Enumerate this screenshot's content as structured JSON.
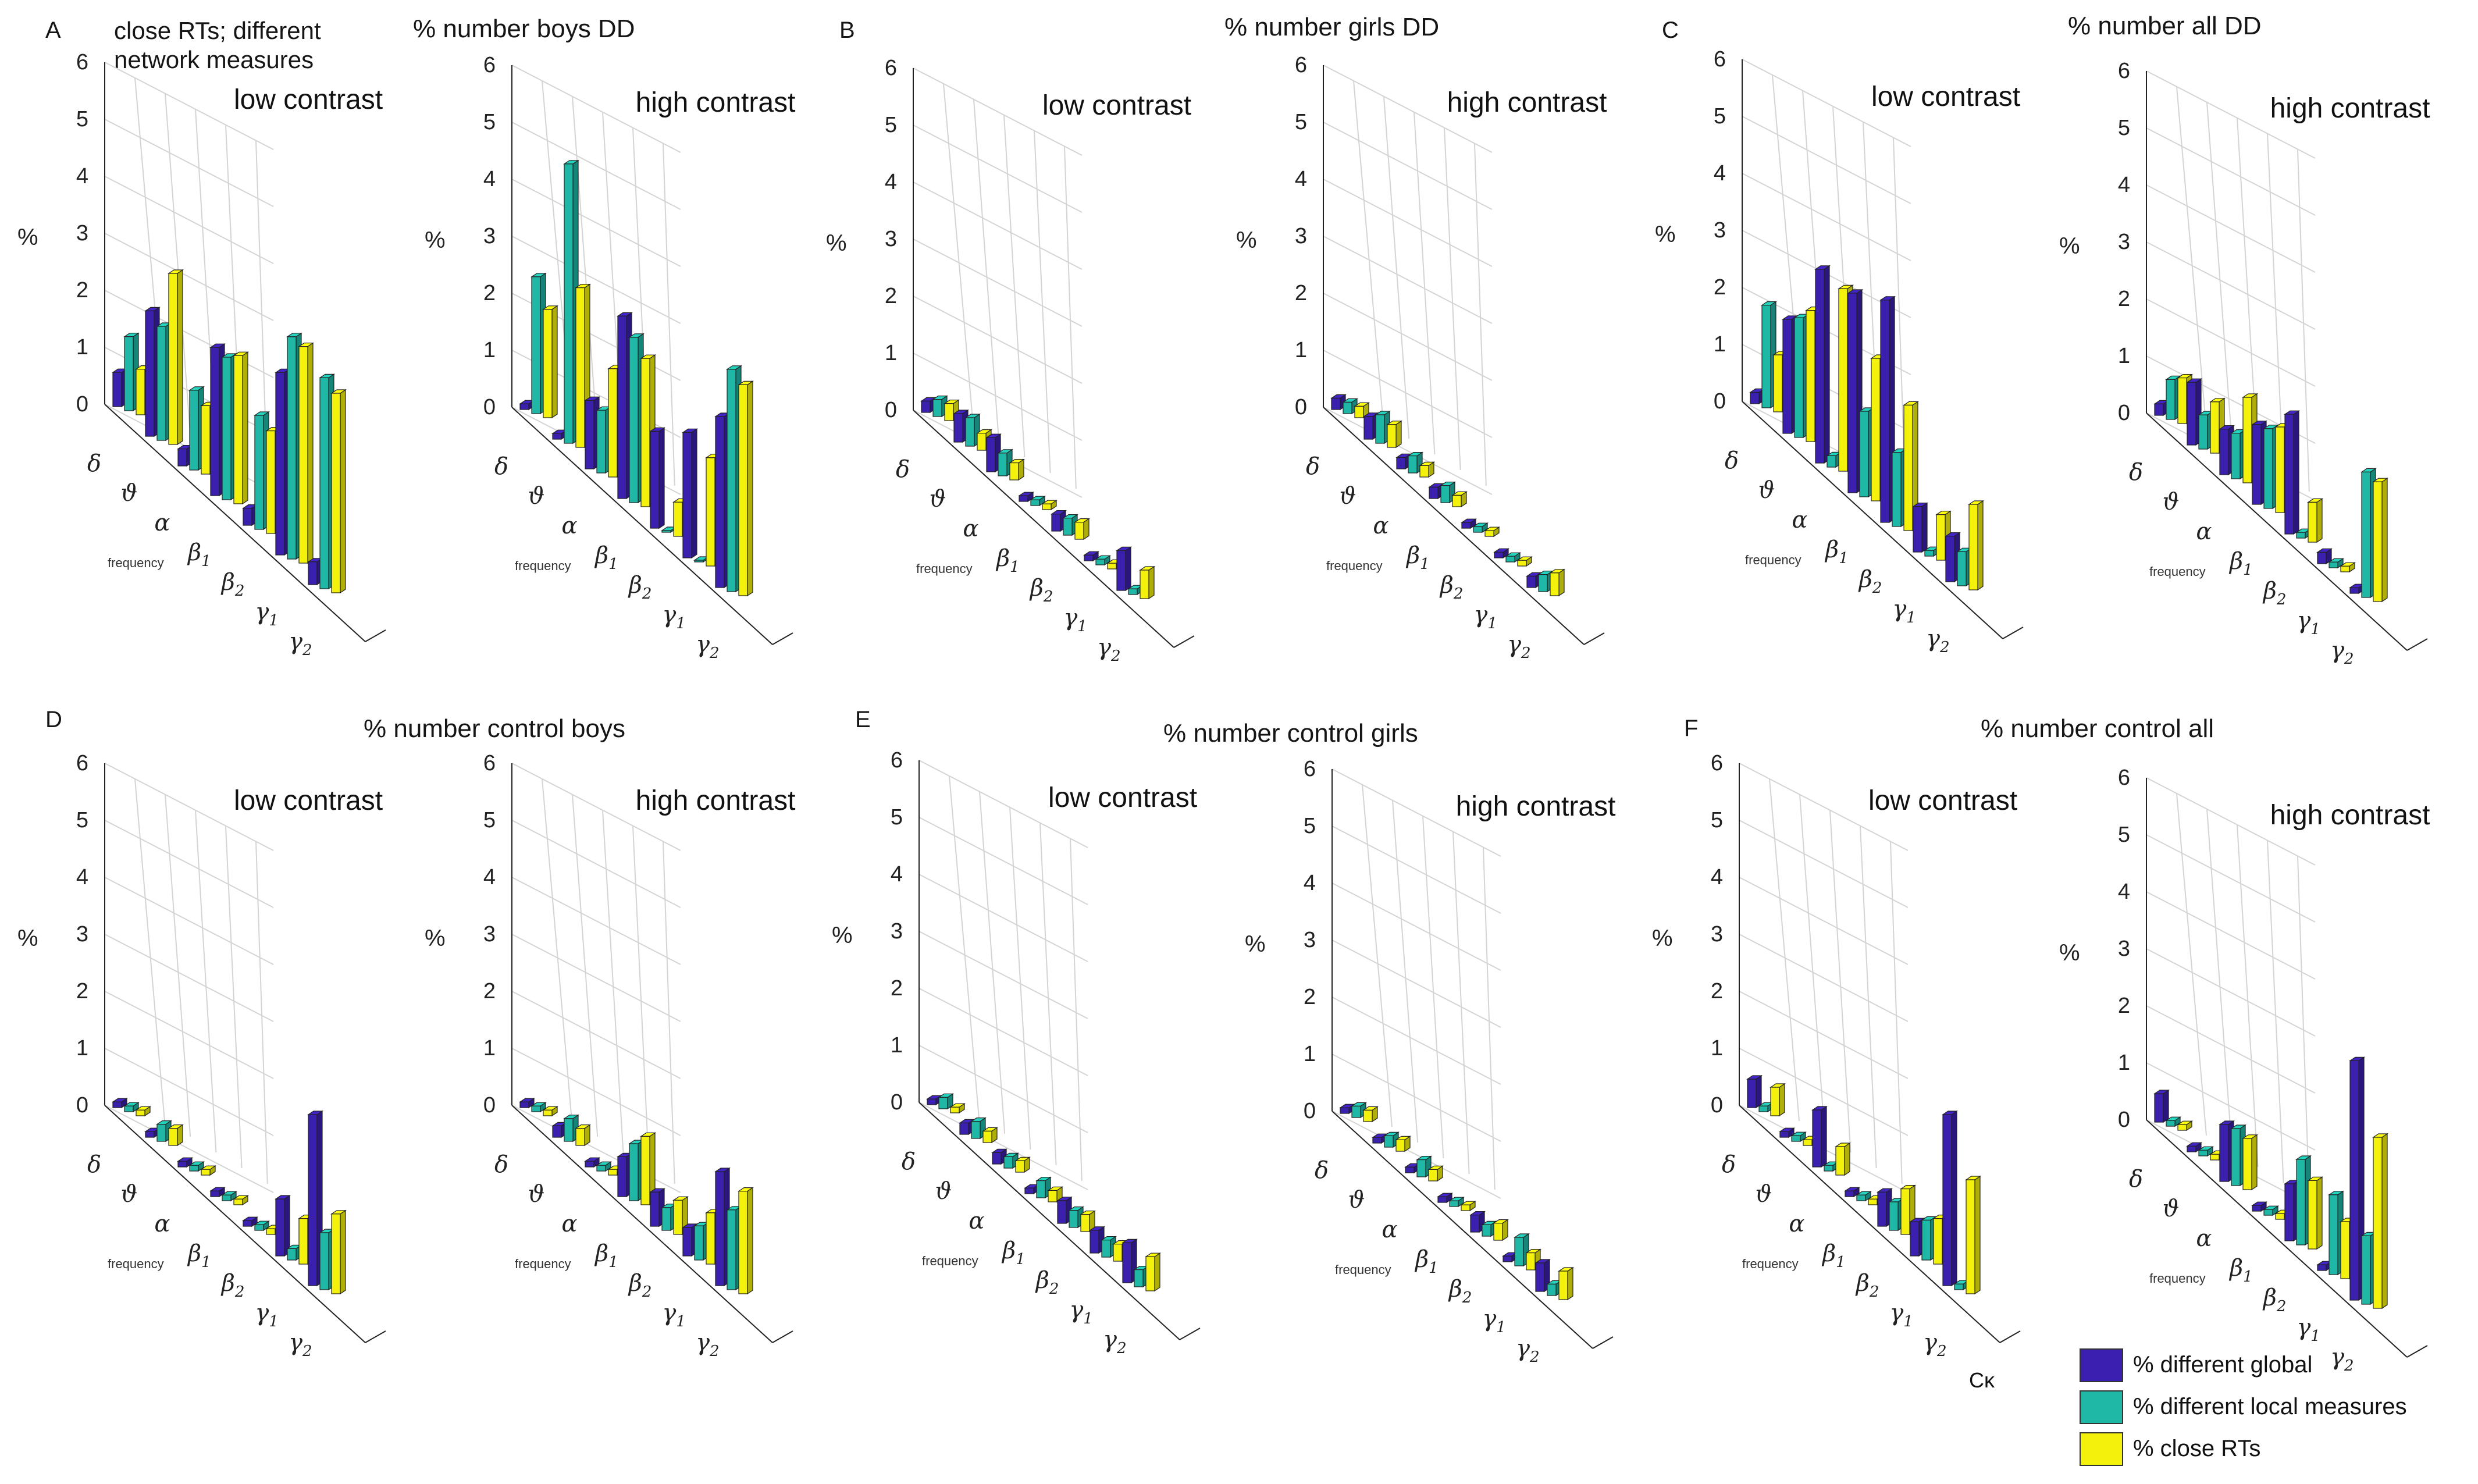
{
  "header_note": [
    "close RTs; different",
    "network measures"
  ],
  "stray_label": "Cκ",
  "colors": {
    "global": "#3B1FAE",
    "local": "#1FB8A6",
    "close": "#F4F20C",
    "grid": "#d4d4d4",
    "axis": "#222222"
  },
  "legend": [
    {
      "label": "% different  global",
      "color": "#3B1FAE"
    },
    {
      "label": "% different  local measures",
      "color": "#1FB8A6"
    },
    {
      "label": "% close RTs",
      "color": "#F4F20C"
    }
  ],
  "groups": [
    {
      "letter": "A",
      "title": "% number boys DD"
    },
    {
      "letter": "B",
      "title": "% number girls DD"
    },
    {
      "letter": "C",
      "title": "% number all DD"
    },
    {
      "letter": "D",
      "title": "% number control boys"
    },
    {
      "letter": "E",
      "title": "% number control girls"
    },
    {
      "letter": "F",
      "title": "% number control all"
    }
  ],
  "chart_data": [
    {
      "type": "bar3d",
      "group": "A",
      "title": "low contrast",
      "ylabel": "%",
      "xlabel": "frequency",
      "ylim": [
        0,
        6
      ],
      "yticks": [
        "0",
        "1",
        "2",
        "3",
        "4",
        "5",
        "6"
      ],
      "categories": [
        "δ",
        "ϑ",
        "α",
        "β1",
        "β2",
        "γ1",
        "γ2"
      ],
      "series": [
        {
          "name": "% different  global",
          "values": [
            0.6,
            2.2,
            0.3,
            2.6,
            0.3,
            3.2,
            0.4
          ]
        },
        {
          "name": "% different  local measures",
          "values": [
            1.3,
            2.0,
            1.4,
            2.5,
            2.0,
            3.9,
            3.7
          ]
        },
        {
          "name": "% close RTs",
          "values": [
            0.8,
            3.0,
            1.2,
            2.6,
            1.8,
            3.8,
            3.5
          ]
        }
      ]
    },
    {
      "type": "bar3d",
      "group": "A",
      "title": "high contrast",
      "ylabel": "%",
      "xlabel": "frequency",
      "ylim": [
        0,
        6
      ],
      "yticks": [
        "0",
        "1",
        "2",
        "3",
        "4",
        "5",
        "6"
      ],
      "categories": [
        "δ",
        "ϑ",
        "α",
        "β1",
        "β2",
        "γ1",
        "γ2"
      ],
      "series": [
        {
          "name": "% different  global",
          "values": [
            0.1,
            0.1,
            1.2,
            3.2,
            1.7,
            2.2,
            3.0
          ]
        },
        {
          "name": "% different  local measures",
          "values": [
            2.4,
            4.9,
            1.1,
            2.9,
            0.0,
            0.0,
            3.9
          ]
        },
        {
          "name": "% close RTs",
          "values": [
            1.9,
            2.8,
            1.9,
            2.6,
            0.6,
            1.9,
            3.7
          ]
        }
      ]
    },
    {
      "type": "bar3d",
      "group": "B",
      "title": "low contrast",
      "ylabel": "%",
      "xlabel": "frequency",
      "ylim": [
        0,
        6
      ],
      "yticks": [
        "0",
        "1",
        "2",
        "3",
        "4",
        "5",
        "6"
      ],
      "categories": [
        "δ",
        "ϑ",
        "α",
        "β1",
        "β2",
        "γ1",
        "γ2"
      ],
      "series": [
        {
          "name": "% different  global",
          "values": [
            0.2,
            0.5,
            0.6,
            0.1,
            0.3,
            0.1,
            0.7
          ]
        },
        {
          "name": "% different  local measures",
          "values": [
            0.3,
            0.5,
            0.4,
            0.1,
            0.3,
            0.1,
            0.1
          ]
        },
        {
          "name": "% close RTs",
          "values": [
            0.3,
            0.3,
            0.3,
            0.1,
            0.3,
            0.1,
            0.5
          ]
        }
      ]
    },
    {
      "type": "bar3d",
      "group": "B",
      "title": "high contrast",
      "ylabel": "%",
      "xlabel": "frequency",
      "ylim": [
        0,
        6
      ],
      "yticks": [
        "0",
        "1",
        "2",
        "3",
        "4",
        "5",
        "6"
      ],
      "categories": [
        "δ",
        "ϑ",
        "α",
        "β1",
        "β2",
        "γ1",
        "γ2"
      ],
      "series": [
        {
          "name": "% different  global",
          "values": [
            0.2,
            0.4,
            0.2,
            0.2,
            0.1,
            0.1,
            0.2
          ]
        },
        {
          "name": "% different  local measures",
          "values": [
            0.2,
            0.5,
            0.3,
            0.3,
            0.1,
            0.1,
            0.3
          ]
        },
        {
          "name": "% close RTs",
          "values": [
            0.2,
            0.4,
            0.2,
            0.2,
            0.1,
            0.1,
            0.4
          ]
        }
      ]
    },
    {
      "type": "bar3d",
      "group": "C",
      "title": "low contrast",
      "ylabel": "%",
      "xlabel": "frequency",
      "ylim": [
        0,
        6
      ],
      "yticks": [
        "0",
        "1",
        "2",
        "3",
        "4",
        "5",
        "6"
      ],
      "categories": [
        "δ",
        "ϑ",
        "α",
        "β1",
        "β2",
        "γ1",
        "γ2"
      ],
      "series": [
        {
          "name": "% different  global",
          "values": [
            0.2,
            2.0,
            3.4,
            3.5,
            3.9,
            0.8,
            0.8
          ]
        },
        {
          "name": "% different  local measures",
          "values": [
            1.8,
            2.1,
            0.2,
            1.5,
            1.3,
            0.1,
            0.6
          ]
        },
        {
          "name": "% close RTs",
          "values": [
            1.0,
            2.3,
            3.2,
            2.5,
            2.2,
            0.8,
            1.5
          ]
        }
      ]
    },
    {
      "type": "bar3d",
      "group": "C",
      "title": "high contrast",
      "ylabel": "%",
      "xlabel": "frequency",
      "ylim": [
        0,
        6
      ],
      "yticks": [
        "0",
        "1",
        "2",
        "3",
        "4",
        "5",
        "6"
      ],
      "categories": [
        "δ",
        "ϑ",
        "α",
        "β1",
        "β2",
        "γ1",
        "γ2"
      ],
      "series": [
        {
          "name": "% different  global",
          "values": [
            0.2,
            1.1,
            0.8,
            1.4,
            2.1,
            0.2,
            0.1
          ]
        },
        {
          "name": "% different  local measures",
          "values": [
            0.7,
            0.6,
            0.8,
            1.4,
            0.1,
            0.1,
            2.2
          ]
        },
        {
          "name": "% close RTs",
          "values": [
            0.8,
            0.9,
            1.5,
            1.5,
            0.7,
            0.1,
            2.1
          ]
        }
      ]
    },
    {
      "type": "bar3d",
      "group": "D",
      "title": "low contrast",
      "ylabel": "%",
      "xlabel": "frequency",
      "ylim": [
        0,
        6
      ],
      "yticks": [
        "0",
        "1",
        "2",
        "3",
        "4",
        "5",
        "6"
      ],
      "categories": [
        "δ",
        "ϑ",
        "α",
        "β1",
        "β2",
        "γ1",
        "γ2"
      ],
      "series": [
        {
          "name": "% different  global",
          "values": [
            0.1,
            0.1,
            0.1,
            0.1,
            0.1,
            1.0,
            3.0
          ]
        },
        {
          "name": "% different  local measures",
          "values": [
            0.1,
            0.3,
            0.1,
            0.1,
            0.1,
            0.2,
            1.0
          ]
        },
        {
          "name": "% close RTs",
          "values": [
            0.1,
            0.3,
            0.1,
            0.1,
            0.1,
            0.8,
            1.4
          ]
        }
      ]
    },
    {
      "type": "bar3d",
      "group": "D",
      "title": "high contrast",
      "ylabel": "%",
      "xlabel": "frequency",
      "ylim": [
        0,
        6
      ],
      "yticks": [
        "0",
        "1",
        "2",
        "3",
        "4",
        "5",
        "6"
      ],
      "categories": [
        "δ",
        "ϑ",
        "α",
        "β1",
        "β2",
        "γ1",
        "γ2"
      ],
      "series": [
        {
          "name": "% different  global",
          "values": [
            0.1,
            0.2,
            0.1,
            0.7,
            0.6,
            0.5,
            2.0
          ]
        },
        {
          "name": "% different  local measures",
          "values": [
            0.1,
            0.4,
            0.1,
            1.0,
            0.4,
            0.6,
            1.4
          ]
        },
        {
          "name": "% close RTs",
          "values": [
            0.1,
            0.3,
            0.1,
            1.2,
            0.6,
            0.9,
            1.8
          ]
        }
      ]
    },
    {
      "type": "bar3d",
      "group": "E",
      "title": "low contrast",
      "ylabel": "%",
      "xlabel": "frequency",
      "ylim": [
        0,
        6
      ],
      "yticks": [
        "0",
        "1",
        "2",
        "3",
        "4",
        "5",
        "6"
      ],
      "categories": [
        "δ",
        "ϑ",
        "α",
        "β1",
        "β2",
        "γ1",
        "γ2"
      ],
      "series": [
        {
          "name": "% different  global",
          "values": [
            0.1,
            0.2,
            0.2,
            0.1,
            0.4,
            0.4,
            0.7
          ]
        },
        {
          "name": "% different  local measures",
          "values": [
            0.2,
            0.3,
            0.2,
            0.3,
            0.3,
            0.3,
            0.3
          ]
        },
        {
          "name": "% close RTs",
          "values": [
            0.1,
            0.2,
            0.2,
            0.2,
            0.3,
            0.3,
            0.6
          ]
        }
      ]
    },
    {
      "type": "bar3d",
      "group": "E",
      "title": "high contrast",
      "ylabel": "%",
      "xlabel": "frequency",
      "ylim": [
        0,
        6
      ],
      "yticks": [
        "0",
        "1",
        "2",
        "3",
        "4",
        "5",
        "6"
      ],
      "categories": [
        "δ",
        "ϑ",
        "α",
        "β1",
        "β2",
        "γ1",
        "γ2"
      ],
      "series": [
        {
          "name": "% different  global",
          "values": [
            0.1,
            0.1,
            0.1,
            0.1,
            0.3,
            0.1,
            0.5
          ]
        },
        {
          "name": "% different  local measures",
          "values": [
            0.2,
            0.2,
            0.3,
            0.1,
            0.2,
            0.5,
            0.2
          ]
        },
        {
          "name": "% close RTs",
          "values": [
            0.2,
            0.2,
            0.2,
            0.1,
            0.3,
            0.3,
            0.5
          ]
        }
      ]
    },
    {
      "type": "bar3d",
      "group": "F",
      "title": "low contrast",
      "ylabel": "%",
      "xlabel": "frequency",
      "ylim": [
        0,
        6
      ],
      "yticks": [
        "0",
        "1",
        "2",
        "3",
        "4",
        "5",
        "6"
      ],
      "categories": [
        "δ",
        "ϑ",
        "α",
        "β1",
        "β2",
        "γ1",
        "γ2"
      ],
      "series": [
        {
          "name": "% different  global",
          "values": [
            0.5,
            0.1,
            1.0,
            0.1,
            0.6,
            0.6,
            3.0
          ]
        },
        {
          "name": "% different  local measures",
          "values": [
            0.1,
            0.1,
            0.1,
            0.1,
            0.5,
            0.7,
            0.1
          ]
        },
        {
          "name": "% close RTs",
          "values": [
            0.5,
            0.1,
            0.5,
            0.1,
            0.8,
            0.8,
            2.0
          ]
        }
      ]
    },
    {
      "type": "bar3d",
      "group": "F",
      "title": "high contrast",
      "ylabel": "%",
      "xlabel": "frequency",
      "ylim": [
        0,
        6
      ],
      "yticks": [
        "0",
        "1",
        "2",
        "3",
        "4",
        "5",
        "6"
      ],
      "categories": [
        "δ",
        "ϑ",
        "α",
        "β1",
        "β2",
        "γ1",
        "γ2"
      ],
      "series": [
        {
          "name": "% different  global",
          "values": [
            0.5,
            0.1,
            1.0,
            0.1,
            1.0,
            0.1,
            4.2
          ]
        },
        {
          "name": "% different  local measures",
          "values": [
            0.1,
            0.1,
            1.0,
            0.1,
            1.5,
            1.4,
            1.2
          ]
        },
        {
          "name": "% close RTs",
          "values": [
            0.1,
            0.1,
            0.9,
            0.1,
            1.2,
            1.0,
            3.0
          ]
        }
      ]
    }
  ]
}
